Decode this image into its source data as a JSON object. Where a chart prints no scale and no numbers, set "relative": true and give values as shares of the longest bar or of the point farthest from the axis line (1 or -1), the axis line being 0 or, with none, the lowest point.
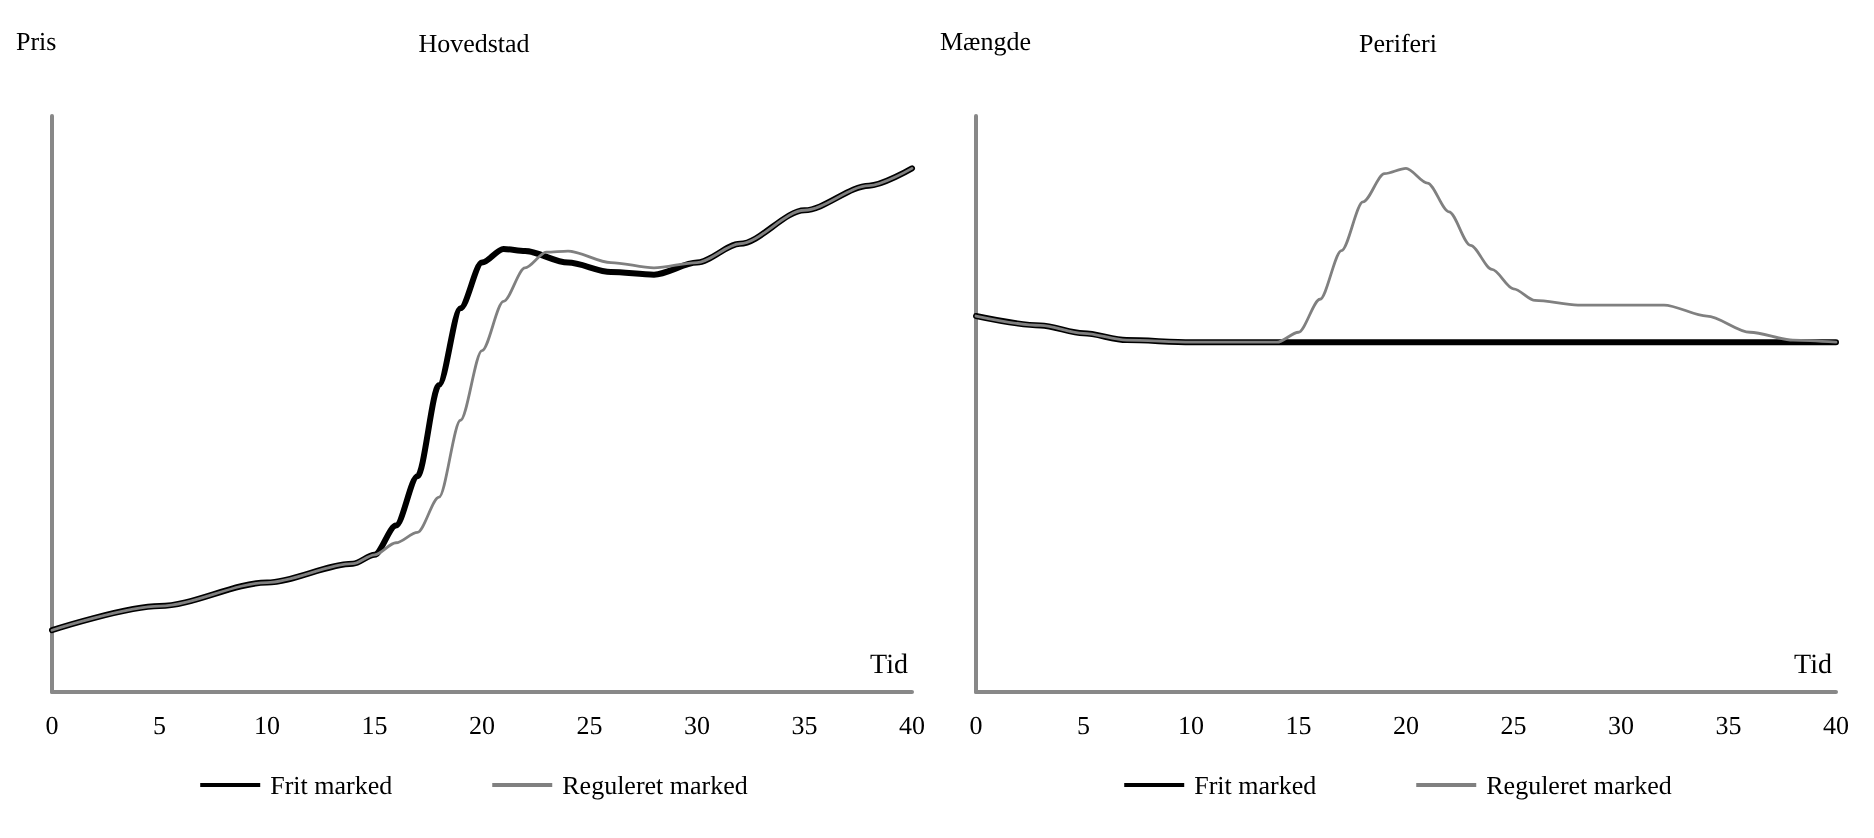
{
  "chart_data": [
    {
      "type": "line",
      "title": "Hovedstad",
      "ylabel": "Pris",
      "xlabel": "Tid",
      "relative": true,
      "xlim": [
        0,
        40
      ],
      "xticks": [
        0,
        5,
        10,
        15,
        20,
        25,
        30,
        35,
        40
      ],
      "tick_labels": "x",
      "grid": false,
      "legend": "bottom",
      "series": [
        {
          "name": "Frit marked",
          "color": "#000000",
          "x": [
            0,
            5,
            10,
            14,
            15,
            16,
            17,
            18,
            19,
            20,
            21,
            22,
            24,
            26,
            28,
            30,
            32,
            35,
            38,
            40
          ],
          "values": [
            0.118,
            0.164,
            0.209,
            0.245,
            0.262,
            0.318,
            0.412,
            0.586,
            0.733,
            0.82,
            0.846,
            0.842,
            0.82,
            0.802,
            0.797,
            0.82,
            0.856,
            0.92,
            0.967,
            1
          ]
        },
        {
          "name": "Reguleret marked",
          "color": "#808080",
          "x": [
            0,
            5,
            10,
            14,
            15,
            16,
            17,
            18,
            19,
            20,
            21,
            22,
            23,
            24,
            26,
            28,
            30,
            32,
            35,
            38,
            40
          ],
          "values": [
            0.118,
            0.164,
            0.209,
            0.245,
            0.262,
            0.285,
            0.305,
            0.372,
            0.519,
            0.652,
            0.746,
            0.81,
            0.84,
            0.842,
            0.82,
            0.81,
            0.82,
            0.856,
            0.92,
            0.967,
            1
          ]
        }
      ]
    },
    {
      "type": "line",
      "title": "Periferi",
      "ylabel": "Mængde",
      "xlabel": "Tid",
      "relative": true,
      "xlim": [
        0,
        40
      ],
      "xticks": [
        0,
        5,
        10,
        15,
        20,
        25,
        30,
        35,
        40
      ],
      "tick_labels": "x",
      "grid": false,
      "legend": "bottom",
      "series": [
        {
          "name": "Frit marked",
          "color": "#000000",
          "x": [
            0,
            3,
            5,
            7,
            10,
            15,
            20,
            25,
            30,
            35,
            40
          ],
          "values": [
            0.718,
            0.7,
            0.685,
            0.672,
            0.668,
            0.668,
            0.668,
            0.668,
            0.668,
            0.668,
            0.668
          ]
        },
        {
          "name": "Reguleret marked",
          "color": "#808080",
          "x": [
            0,
            3,
            5,
            7,
            10,
            14,
            15,
            16,
            17,
            18,
            19,
            20,
            21,
            22,
            23,
            24,
            25,
            26,
            28,
            32,
            34,
            36,
            38,
            40
          ],
          "values": [
            0.718,
            0.7,
            0.685,
            0.672,
            0.668,
            0.668,
            0.687,
            0.75,
            0.843,
            0.936,
            0.99,
            1,
            0.972,
            0.917,
            0.853,
            0.807,
            0.77,
            0.748,
            0.739,
            0.739,
            0.718,
            0.687,
            0.672,
            0.668
          ]
        }
      ]
    }
  ]
}
